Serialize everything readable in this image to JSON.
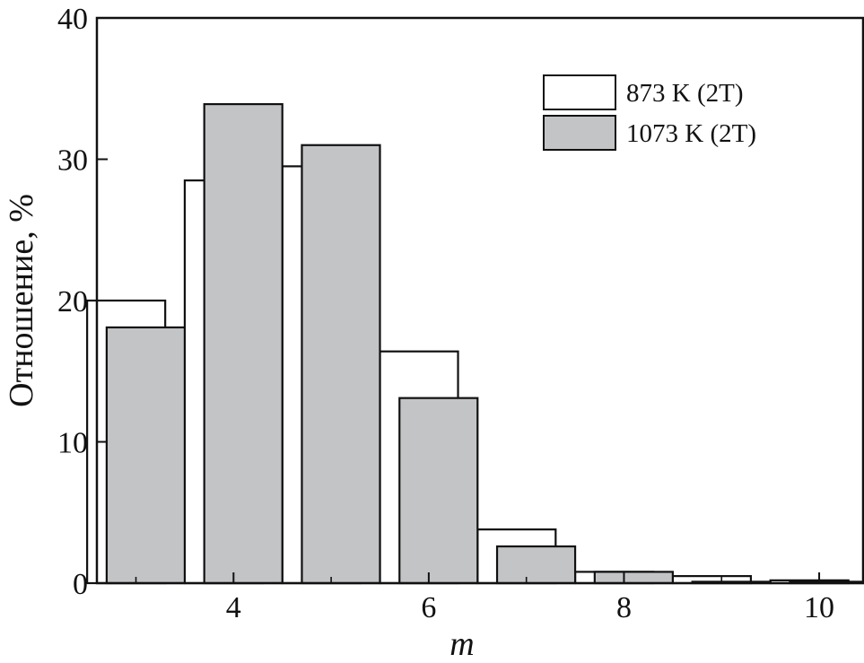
{
  "chart_data": {
    "type": "bar",
    "xlabel": "m",
    "ylabel": "Отношение, %",
    "ylim": [
      0,
      40
    ],
    "xlim": [
      2.6,
      10.45
    ],
    "xticks": [
      "4",
      "6",
      "8",
      "10"
    ],
    "yticks": [
      "0",
      "10",
      "20",
      "30",
      "40"
    ],
    "grid": false,
    "legend_position": "top-right",
    "colors": {
      "series_873": "#ffffff",
      "series_1073": "#c3c4c6",
      "stroke": "#111111"
    },
    "series": [
      {
        "name": "873 K (2T)",
        "x": [
          3,
          4,
          5,
          6,
          7,
          8,
          9,
          10
        ],
        "values": [
          20,
          28.5,
          29.5,
          16.4,
          3.8,
          0.8,
          0.5,
          0.2
        ]
      },
      {
        "name": "1073 K (2T)",
        "x": [
          3,
          4,
          5,
          6,
          7,
          8,
          9,
          10
        ],
        "values": [
          18.1,
          33.9,
          31,
          13.1,
          2.6,
          0.8,
          0.1,
          0.1
        ]
      }
    ]
  }
}
